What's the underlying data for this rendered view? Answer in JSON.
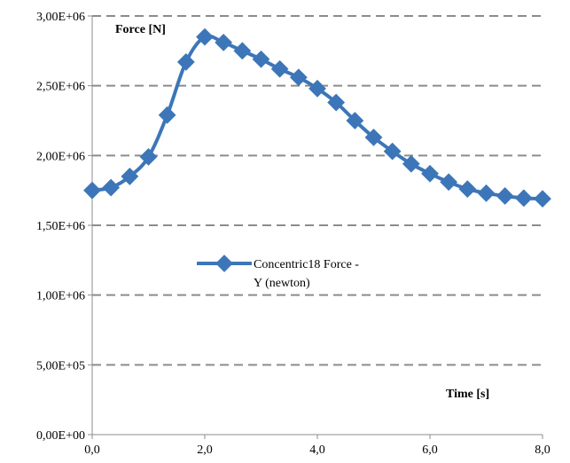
{
  "chart_data": {
    "type": "line",
    "ylabel": "Force [N]",
    "xlabel": "Time [s]",
    "xlim": [
      0,
      8
    ],
    "ylim": [
      0,
      3000000
    ],
    "x_ticks": [
      0,
      2,
      4,
      6,
      8
    ],
    "x_tick_labels": [
      "0,0",
      "2,0",
      "4,0",
      "6,0",
      "8,0"
    ],
    "y_ticks": [
      0,
      500000,
      1000000,
      1500000,
      2000000,
      2500000,
      3000000
    ],
    "y_tick_labels": [
      "0,00E+00",
      "5,00E+05",
      "1,00E+06",
      "1,50E+06",
      "2,00E+06",
      "2,50E+06",
      "3,00E+06"
    ],
    "grid": "horizontal dashed",
    "legend_position": "center-left",
    "series": [
      {
        "name": "Concentric18 Force - Y (newton)",
        "legend_lines": [
          "Concentric18 Force -",
          "Y (newton)"
        ],
        "color": "#3d76b8",
        "marker": "diamond",
        "x": [
          0,
          0.333,
          0.667,
          1.0,
          1.333,
          1.667,
          2.0,
          2.333,
          2.667,
          3.0,
          3.333,
          3.667,
          4.0,
          4.333,
          4.667,
          5.0,
          5.333,
          5.667,
          6.0,
          6.333,
          6.667,
          7.0,
          7.333,
          7.667,
          8.0
        ],
        "y": [
          1750000,
          1770000,
          1850000,
          1990000,
          2290000,
          2670000,
          2850000,
          2810000,
          2750000,
          2690000,
          2620000,
          2560000,
          2480000,
          2380000,
          2250000,
          2130000,
          2030000,
          1940000,
          1870000,
          1810000,
          1760000,
          1730000,
          1710000,
          1695000,
          1690000
        ]
      }
    ]
  }
}
